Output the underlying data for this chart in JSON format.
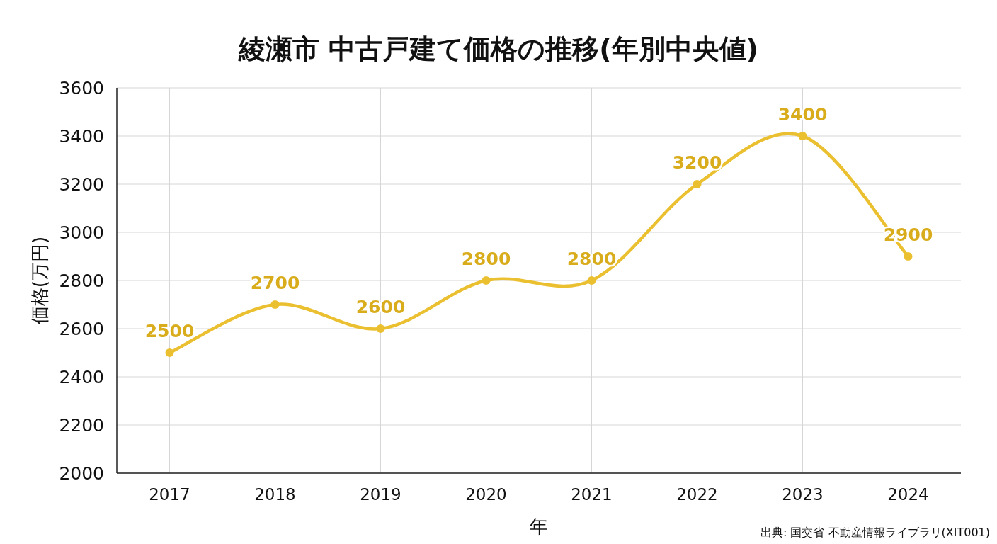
{
  "chart_data": {
    "type": "line",
    "title": "綾瀬市 中古戸建て価格の推移(年別中央値)",
    "xlabel": "年",
    "ylabel": "価格(万円)",
    "categories": [
      "2017",
      "2018",
      "2019",
      "2020",
      "2021",
      "2022",
      "2023",
      "2024"
    ],
    "series": [
      {
        "color": "#ebc030",
        "values": [
          2500,
          2700,
          2600,
          2800,
          2800,
          3200,
          3400,
          2900
        ]
      }
    ],
    "ylim": [
      2000,
      3600
    ],
    "yticks": [
      2000,
      2200,
      2400,
      2600,
      2800,
      3000,
      3200,
      3400,
      3600
    ],
    "grid": true,
    "data_labels": true,
    "marker": "circle",
    "line_style": "solid",
    "annotations": [
      "出典: 国交省 不動産情報ライブラリ(XIT001)"
    ]
  }
}
